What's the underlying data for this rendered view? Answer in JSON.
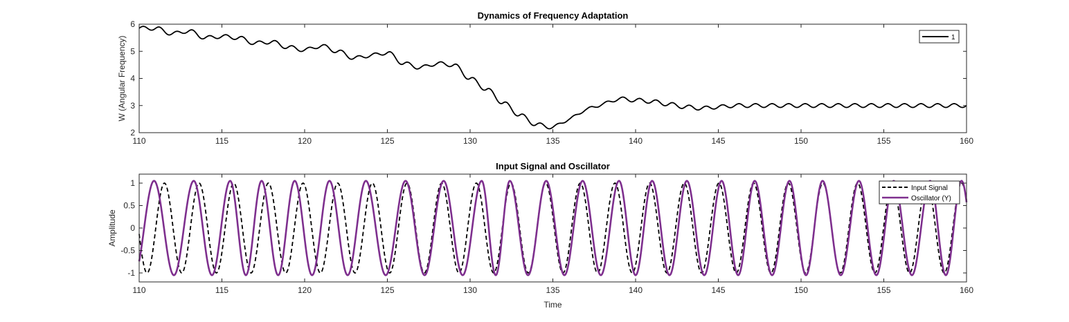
{
  "chart_data": [
    {
      "type": "line",
      "title": "Dynamics of Frequency Adaptation",
      "xlabel": "",
      "ylabel": "W (Angular Frequency)",
      "xlim": [
        110,
        160
      ],
      "ylim": [
        2,
        6
      ],
      "xticks": [
        "110",
        "115",
        "120",
        "125",
        "130",
        "135",
        "140",
        "145",
        "150",
        "155",
        "160"
      ],
      "yticks": [
        "2",
        "3",
        "4",
        "5",
        "6"
      ],
      "grid": false,
      "legend": {
        "location": "top-right",
        "entries": [
          "1"
        ]
      },
      "series": [
        {
          "name": "1",
          "color": "#000000",
          "style": "solid",
          "x": [
            110,
            111,
            112,
            113,
            114,
            115,
            116,
            117,
            118,
            119,
            120,
            121,
            122,
            123,
            124,
            125,
            126,
            127,
            128,
            129,
            130,
            131,
            132,
            133,
            134,
            135,
            136,
            137,
            138,
            139,
            140,
            141,
            142,
            143,
            144,
            145,
            146,
            147,
            148,
            149,
            150,
            151,
            152,
            153,
            154,
            155,
            156,
            157,
            158,
            159,
            160
          ],
          "y": [
            5.85,
            5.85,
            5.65,
            5.75,
            5.5,
            5.55,
            5.5,
            5.3,
            5.35,
            5.15,
            5.05,
            5.2,
            5.0,
            4.75,
            4.85,
            4.95,
            4.55,
            4.4,
            4.55,
            4.5,
            4.0,
            3.6,
            3.1,
            2.65,
            2.3,
            2.2,
            2.5,
            2.85,
            3.05,
            3.25,
            3.2,
            3.15,
            3.05,
            2.95,
            2.9,
            2.95,
            3.0,
            3.0,
            3.0,
            3.0,
            3.0,
            3.0,
            3.0,
            3.0,
            3.0,
            3.0,
            3.0,
            3.0,
            3.0,
            3.0,
            3.0
          ],
          "oscillation_amplitude": 0.07,
          "oscillation_period": 1.0
        }
      ]
    },
    {
      "type": "line",
      "title": "Input Signal and Oscillator",
      "xlabel": "Time",
      "ylabel": "Amplitude",
      "xlim": [
        110,
        160
      ],
      "ylim": [
        -1.2,
        1.2
      ],
      "xticks": [
        "110",
        "115",
        "120",
        "125",
        "130",
        "135",
        "140",
        "145",
        "150",
        "155",
        "160"
      ],
      "yticks": [
        "-1",
        "-0.5",
        "0",
        "0.5",
        "1"
      ],
      "grid": false,
      "legend": {
        "location": "top-right",
        "entries": [
          "Input Signal",
          "Oscillator (Y)"
        ]
      },
      "series": [
        {
          "name": "Input Signal",
          "color": "#000000",
          "style": "dashed",
          "amplitude": 1.0,
          "angular_frequency": 3.0,
          "x_start": 110,
          "x_end": 160
        },
        {
          "name": "Oscillator (Y)",
          "color": "#7e2f8e",
          "style": "solid",
          "amplitude": 1.05,
          "peaks_x": [
            110.9,
            113.3,
            115.5,
            117.4,
            119.4,
            121.5,
            123.7,
            126.1,
            128.4,
            130.7,
            132.4,
            134.6,
            136.8,
            139.0,
            141.0,
            143.1,
            145.2,
            147.2,
            149.3,
            151.3,
            153.5,
            155.6,
            157.8,
            159.7
          ]
        }
      ]
    }
  ]
}
